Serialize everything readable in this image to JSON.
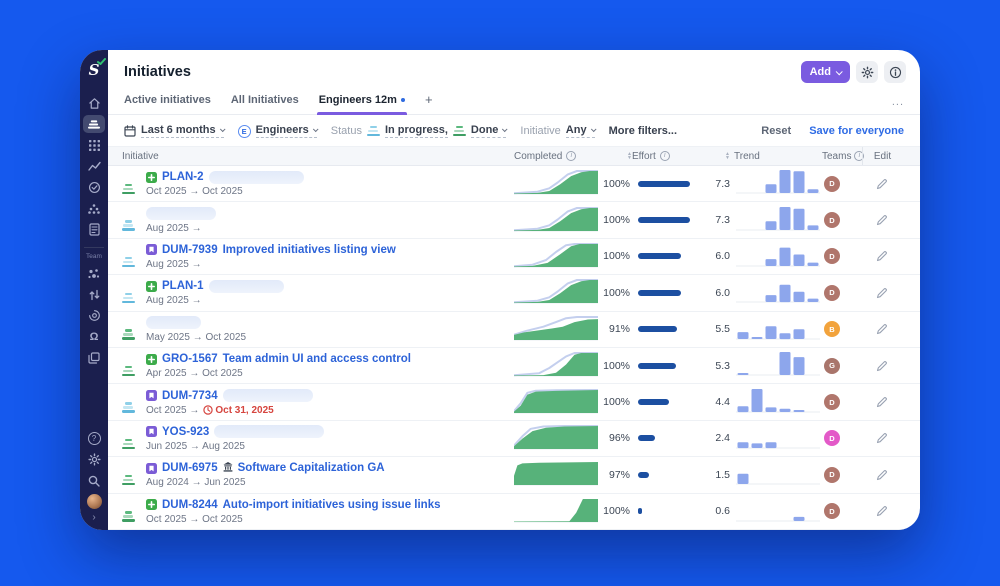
{
  "app": {
    "title": "Initiatives",
    "add_button": "Add"
  },
  "tabs": {
    "items": [
      {
        "label": "Active initiatives",
        "active": false,
        "dot": false
      },
      {
        "label": "All Initiatives",
        "active": false,
        "dot": false
      },
      {
        "label": "Engineers 12m",
        "active": true,
        "dot": true
      }
    ],
    "add": "+",
    "overflow": "..."
  },
  "filters": {
    "time_range": "Last 6 months",
    "team_badge": "E",
    "team": "Engineers",
    "status_label": "Status",
    "status_in_progress": "In progress,",
    "status_done": "Done",
    "initiative_label": "Initiative",
    "initiative_value": "Any",
    "more_filters": "More filters...",
    "reset": "Reset",
    "save": "Save for everyone"
  },
  "sidebar": {
    "team_label": "Team"
  },
  "table": {
    "columns": {
      "initiative": "Initiative",
      "completed": "Completed",
      "effort": "Effort",
      "trend": "Trend",
      "teams": "Teams",
      "edit": "Edit"
    },
    "rows": [
      {
        "status": "green",
        "badge": "green",
        "key": "PLAN-2",
        "title": "",
        "redacted": 95,
        "date_start": "Oct 2025",
        "date_end": "Oct 2025",
        "overdue": "",
        "percent": "100%",
        "effort": 7.3,
        "trend": [
          0,
          0,
          38,
          100,
          95,
          16
        ],
        "area": [
          [
            0,
            0.02
          ],
          [
            0.28,
            0.05
          ],
          [
            0.42,
            0.13
          ],
          [
            0.55,
            0.42
          ],
          [
            0.68,
            0.78
          ],
          [
            0.8,
            0.95
          ],
          [
            0.9,
            1
          ],
          [
            1,
            1
          ]
        ],
        "scope": [
          [
            0,
            0.03
          ],
          [
            0.28,
            0.1
          ],
          [
            0.42,
            0.25
          ],
          [
            0.52,
            0.5
          ],
          [
            0.64,
            0.85
          ],
          [
            0.75,
            1
          ],
          [
            1,
            1
          ]
        ],
        "avatar": {
          "letter": "D",
          "color": "#b0766c"
        }
      },
      {
        "status": "blue",
        "badge": null,
        "key": "",
        "title": "",
        "redacted": 70,
        "date_start": "Aug 2025",
        "date_end": "",
        "overdue": "",
        "percent": "100%",
        "effort": 7.3,
        "trend": [
          0,
          0,
          38,
          100,
          92,
          20
        ],
        "area": [
          [
            0,
            0.02
          ],
          [
            0.28,
            0.05
          ],
          [
            0.42,
            0.13
          ],
          [
            0.55,
            0.42
          ],
          [
            0.68,
            0.78
          ],
          [
            0.8,
            0.95
          ],
          [
            0.9,
            1
          ],
          [
            1,
            1
          ]
        ],
        "scope": [
          [
            0,
            0.03
          ],
          [
            0.28,
            0.1
          ],
          [
            0.42,
            0.25
          ],
          [
            0.52,
            0.5
          ],
          [
            0.64,
            0.85
          ],
          [
            0.75,
            1
          ],
          [
            1,
            1
          ]
        ],
        "avatar": {
          "letter": "D",
          "color": "#b0766c"
        }
      },
      {
        "status": "blue",
        "badge": "purple",
        "key": "DUM-7939",
        "title": "Improved initiatives listing view",
        "redacted": 0,
        "date_start": "Aug 2025",
        "date_end": "",
        "overdue": "",
        "percent": "100%",
        "effort": 6.0,
        "trend": [
          0,
          0,
          30,
          80,
          50,
          15
        ],
        "area": [
          [
            0,
            0.02
          ],
          [
            0.22,
            0.05
          ],
          [
            0.4,
            0.18
          ],
          [
            0.55,
            0.55
          ],
          [
            0.68,
            0.9
          ],
          [
            0.78,
            1
          ],
          [
            1,
            1
          ]
        ],
        "scope": [
          [
            0,
            0.03
          ],
          [
            0.22,
            0.1
          ],
          [
            0.38,
            0.3
          ],
          [
            0.5,
            0.65
          ],
          [
            0.62,
            0.95
          ],
          [
            0.72,
            1
          ],
          [
            1,
            1
          ]
        ],
        "avatar": {
          "letter": "D",
          "color": "#b0766c"
        }
      },
      {
        "status": "blue",
        "badge": "green",
        "key": "PLAN-1",
        "title": "",
        "redacted": 75,
        "date_start": "Aug 2025",
        "date_end": "",
        "overdue": "",
        "percent": "100%",
        "effort": 6.0,
        "trend": [
          0,
          0,
          30,
          75,
          45,
          15
        ],
        "area": [
          [
            0,
            0.02
          ],
          [
            0.28,
            0.05
          ],
          [
            0.42,
            0.13
          ],
          [
            0.55,
            0.42
          ],
          [
            0.68,
            0.78
          ],
          [
            0.8,
            0.95
          ],
          [
            0.9,
            1
          ],
          [
            1,
            1
          ]
        ],
        "scope": [
          [
            0,
            0.03
          ],
          [
            0.28,
            0.1
          ],
          [
            0.42,
            0.25
          ],
          [
            0.52,
            0.5
          ],
          [
            0.64,
            0.85
          ],
          [
            0.75,
            1
          ],
          [
            1,
            1
          ]
        ],
        "avatar": {
          "letter": "D",
          "color": "#b0766c"
        }
      },
      {
        "status": "green",
        "badge": null,
        "key": "",
        "title": "",
        "redacted": 55,
        "date_start": "May 2025",
        "date_end": "Oct 2025",
        "overdue": "",
        "percent": "91%",
        "effort": 5.5,
        "trend": [
          30,
          6,
          55,
          25,
          42,
          0
        ],
        "area": [
          [
            0,
            0.22
          ],
          [
            0.12,
            0.33
          ],
          [
            0.3,
            0.42
          ],
          [
            0.45,
            0.5
          ],
          [
            0.58,
            0.58
          ],
          [
            0.72,
            0.78
          ],
          [
            0.88,
            0.89
          ],
          [
            1,
            0.91
          ]
        ],
        "scope": [
          [
            0,
            0.23
          ],
          [
            0.15,
            0.4
          ],
          [
            0.35,
            0.58
          ],
          [
            0.5,
            0.78
          ],
          [
            0.62,
            0.95
          ],
          [
            0.75,
            1
          ],
          [
            1,
            1
          ]
        ],
        "avatar": {
          "letter": "B",
          "color": "#f2a33c"
        }
      },
      {
        "status": "green",
        "badge": "green",
        "key": "GRO-1567",
        "title": "Team admin UI and access control",
        "redacted": 0,
        "date_start": "Apr 2025",
        "date_end": "Oct 2025",
        "overdue": "",
        "percent": "100%",
        "effort": 5.3,
        "trend": [
          6,
          0,
          0,
          100,
          78,
          0
        ],
        "area": [
          [
            0,
            0.02
          ],
          [
            0.35,
            0.04
          ],
          [
            0.5,
            0.14
          ],
          [
            0.62,
            0.5
          ],
          [
            0.72,
            0.92
          ],
          [
            0.8,
            1
          ],
          [
            1,
            1
          ]
        ],
        "scope": [
          [
            0,
            0.03
          ],
          [
            0.3,
            0.12
          ],
          [
            0.42,
            0.35
          ],
          [
            0.52,
            0.6
          ],
          [
            0.62,
            0.85
          ],
          [
            0.72,
            1
          ],
          [
            1,
            1
          ]
        ],
        "avatar": {
          "letter": "G",
          "color": "#a9756b"
        }
      },
      {
        "status": "blue",
        "badge": "purple",
        "key": "DUM-7734",
        "title": "",
        "redacted": 90,
        "date_start": "Oct 2025",
        "date_end": "",
        "overdue": "Oct 31, 2025",
        "percent": "100%",
        "effort": 4.4,
        "trend": [
          25,
          100,
          20,
          14,
          8,
          0
        ],
        "area": [
          [
            0,
            0.06
          ],
          [
            0.08,
            0.32
          ],
          [
            0.16,
            0.8
          ],
          [
            0.26,
            0.93
          ],
          [
            0.5,
            0.96
          ],
          [
            1,
            1
          ]
        ],
        "scope": [
          [
            0,
            0.08
          ],
          [
            0.08,
            0.42
          ],
          [
            0.16,
            0.88
          ],
          [
            0.26,
            0.97
          ],
          [
            0.5,
            0.99
          ],
          [
            1,
            1
          ]
        ],
        "avatar": {
          "letter": "D",
          "color": "#b0766c"
        }
      },
      {
        "status": "green",
        "badge": "purple",
        "key": "YOS-923",
        "title": "",
        "redacted": 110,
        "date_start": "Jun 2025",
        "date_end": "Aug 2025",
        "overdue": "",
        "percent": "96%",
        "effort": 2.4,
        "trend": [
          25,
          20,
          25,
          0,
          0,
          0
        ],
        "area": [
          [
            0,
            0.12
          ],
          [
            0.1,
            0.45
          ],
          [
            0.22,
            0.78
          ],
          [
            0.38,
            0.92
          ],
          [
            0.6,
            0.98
          ],
          [
            1,
            1
          ]
        ],
        "scope": [
          [
            0,
            0.15
          ],
          [
            0.1,
            0.55
          ],
          [
            0.2,
            0.88
          ],
          [
            0.35,
            0.98
          ],
          [
            0.6,
            1
          ],
          [
            1,
            1
          ]
        ],
        "avatar": {
          "letter": "D",
          "color": "#e35ac8"
        }
      },
      {
        "status": "green",
        "badge": "purple",
        "key": "DUM-6975",
        "title": "Software Capitalization GA",
        "building_icon": true,
        "redacted": 0,
        "date_start": "Aug 2024",
        "date_end": "Jun 2025",
        "overdue": "",
        "percent": "97%",
        "effort": 1.5,
        "trend": [
          45,
          0,
          0,
          0,
          0,
          0
        ],
        "area": [
          [
            0,
            0.4
          ],
          [
            0.04,
            0.85
          ],
          [
            0.1,
            0.94
          ],
          [
            0.3,
            0.97
          ],
          [
            1,
            1
          ]
        ],
        "scope": null,
        "avatar": {
          "letter": "D",
          "color": "#b0766c"
        }
      },
      {
        "status": "green",
        "badge": "green",
        "key": "DUM-8244",
        "title": "Auto-import initiatives using issue links",
        "redacted": 0,
        "date_start": "Oct 2025",
        "date_end": "Oct 2025",
        "overdue": "",
        "percent": "100%",
        "effort": 0.6,
        "trend": [
          0,
          0,
          0,
          0,
          18,
          0
        ],
        "area": [
          [
            0,
            0.02
          ],
          [
            0.66,
            0.03
          ],
          [
            0.74,
            0.4
          ],
          [
            0.82,
            1
          ],
          [
            1,
            1
          ]
        ],
        "scope": null,
        "avatar": {
          "letter": "D",
          "color": "#b0766c"
        }
      },
      {
        "partial": true,
        "status": "green",
        "badge": null,
        "key": "",
        "title": "",
        "redacted": 0,
        "date_start": "",
        "date_end": "",
        "overdue": "",
        "percent": "",
        "effort": null,
        "trend": [],
        "area": [
          [
            0,
            0
          ],
          [
            0.38,
            0.05
          ],
          [
            0.5,
            1
          ],
          [
            0.66,
            1
          ],
          [
            0.72,
            0.8
          ],
          [
            1,
            0.82
          ]
        ],
        "scope": null,
        "avatar": null
      }
    ]
  },
  "colors": {
    "background": "#1559ee",
    "sidebar": "#1b1f4e",
    "accent_purple": "#7a5be0",
    "link_blue": "#2d63d8",
    "area_green": "#57b27a",
    "scope_line": "#c4cfee",
    "effort_bar": "#1c4fa1",
    "trend_bar": "#8da6ec",
    "overdue_red": "#d6453f",
    "tab_dot_blue": "#2f6be0"
  }
}
